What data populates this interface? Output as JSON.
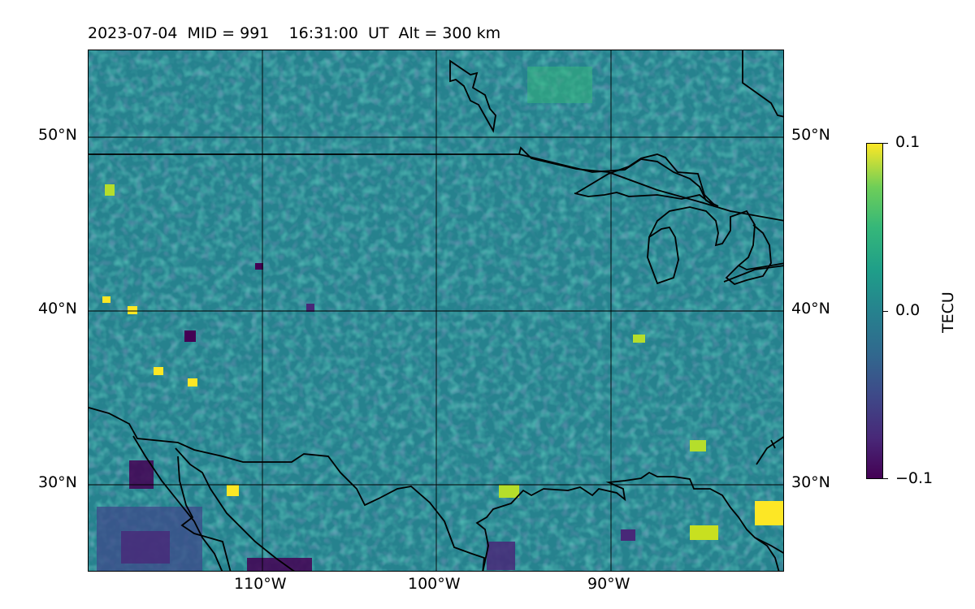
{
  "title": "2023-07-04  MID = 991    16:31:00  UT  Alt = 300 km",
  "map": {
    "lat_labels_left": [
      "50°N",
      "40°N",
      "30°N"
    ],
    "lat_labels_right": [
      "50°N",
      "40°N",
      "30°N"
    ],
    "lon_labels": [
      "110°W",
      "100°W",
      "90°W"
    ],
    "lon_range": [
      -120,
      -80
    ],
    "lat_range": [
      25,
      55
    ],
    "gridlines": true,
    "coastline_color": "#000000",
    "colormap": "viridis"
  },
  "colorbar": {
    "title": "TECU",
    "ticks": [
      "0.1",
      "0.0",
      "−0.1"
    ],
    "range": [
      -0.1,
      0.1
    ]
  }
}
